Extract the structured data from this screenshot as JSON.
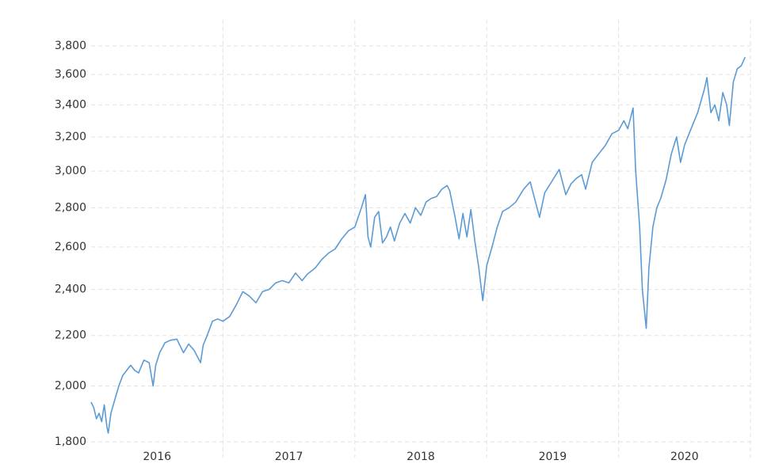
{
  "chart_data": {
    "type": "line",
    "log_scale_y": true,
    "grid": true,
    "xlim": [
      2016,
      2021
    ],
    "xticks": [
      {
        "value": 2016.5,
        "label": "2016"
      },
      {
        "value": 2017.5,
        "label": "2017"
      },
      {
        "value": 2018.5,
        "label": "2018"
      },
      {
        "value": 2019.5,
        "label": "2019"
      },
      {
        "value": 2020.5,
        "label": "2020"
      }
    ],
    "xgridlines": [
      2017,
      2018,
      2019,
      2020,
      2021
    ],
    "ylim": [
      1800,
      3800
    ],
    "yticks": [
      {
        "value": 1800,
        "label": "1,800"
      },
      {
        "value": 2000,
        "label": "2,000"
      },
      {
        "value": 2200,
        "label": "2,200"
      },
      {
        "value": 2400,
        "label": "2,400"
      },
      {
        "value": 2600,
        "label": "2,600"
      },
      {
        "value": 2800,
        "label": "2,800"
      },
      {
        "value": 3000,
        "label": "3,000"
      },
      {
        "value": 3200,
        "label": "3,200"
      },
      {
        "value": 3400,
        "label": "3,400"
      },
      {
        "value": 3600,
        "label": "3,600"
      },
      {
        "value": 3800,
        "label": "3,800"
      }
    ],
    "x": [
      2016.0,
      2016.02,
      2016.04,
      2016.06,
      2016.08,
      2016.1,
      2016.12,
      2016.13,
      2016.15,
      2016.18,
      2016.21,
      2016.24,
      2016.27,
      2016.3,
      2016.33,
      2016.36,
      2016.4,
      2016.44,
      2016.47,
      2016.49,
      2016.52,
      2016.56,
      2016.6,
      2016.65,
      2016.7,
      2016.74,
      2016.78,
      2016.83,
      2016.85,
      2016.88,
      2016.92,
      2016.96,
      2017.0,
      2017.05,
      2017.1,
      2017.15,
      2017.2,
      2017.25,
      2017.3,
      2017.35,
      2017.4,
      2017.45,
      2017.5,
      2017.55,
      2017.6,
      2017.64,
      2017.7,
      2017.75,
      2017.8,
      2017.85,
      2017.9,
      2017.95,
      2018.0,
      2018.05,
      2018.08,
      2018.1,
      2018.12,
      2018.15,
      2018.18,
      2018.21,
      2018.24,
      2018.27,
      2018.3,
      2018.34,
      2018.38,
      2018.42,
      2018.46,
      2018.5,
      2018.54,
      2018.58,
      2018.62,
      2018.66,
      2018.7,
      2018.72,
      2018.76,
      2018.79,
      2018.82,
      2018.85,
      2018.88,
      2018.91,
      2018.94,
      2018.97,
      2019.0,
      2019.04,
      2019.08,
      2019.12,
      2019.17,
      2019.22,
      2019.28,
      2019.33,
      2019.37,
      2019.4,
      2019.44,
      2019.5,
      2019.55,
      2019.6,
      2019.64,
      2019.68,
      2019.72,
      2019.75,
      2019.8,
      2019.85,
      2019.9,
      2019.95,
      2020.0,
      2020.04,
      2020.07,
      2020.11,
      2020.13,
      2020.16,
      2020.18,
      2020.21,
      2020.23,
      2020.26,
      2020.29,
      2020.32,
      2020.36,
      2020.4,
      2020.44,
      2020.47,
      2020.5,
      2020.55,
      2020.6,
      2020.65,
      2020.67,
      2020.7,
      2020.73,
      2020.76,
      2020.79,
      2020.82,
      2020.84,
      2020.87,
      2020.9,
      2020.93,
      2020.96
    ],
    "series": [
      {
        "color": "#5b9bd5",
        "values": [
          1940,
          1920,
          1880,
          1900,
          1870,
          1930,
          1850,
          1830,
          1900,
          1950,
          2000,
          2040,
          2060,
          2080,
          2060,
          2050,
          2100,
          2090,
          2000,
          2080,
          2130,
          2170,
          2180,
          2185,
          2130,
          2165,
          2140,
          2090,
          2160,
          2200,
          2260,
          2270,
          2260,
          2280,
          2330,
          2390,
          2370,
          2340,
          2390,
          2400,
          2430,
          2440,
          2430,
          2475,
          2440,
          2470,
          2500,
          2540,
          2570,
          2590,
          2640,
          2680,
          2700,
          2800,
          2870,
          2650,
          2600,
          2750,
          2780,
          2620,
          2650,
          2700,
          2630,
          2720,
          2770,
          2720,
          2800,
          2760,
          2830,
          2850,
          2860,
          2900,
          2920,
          2890,
          2750,
          2640,
          2770,
          2650,
          2790,
          2630,
          2500,
          2350,
          2510,
          2600,
          2700,
          2780,
          2800,
          2830,
          2900,
          2940,
          2830,
          2750,
          2880,
          2950,
          3010,
          2870,
          2930,
          2960,
          2980,
          2900,
          3050,
          3100,
          3150,
          3220,
          3240,
          3300,
          3250,
          3380,
          3000,
          2700,
          2400,
          2230,
          2500,
          2700,
          2800,
          2850,
          2950,
          3100,
          3200,
          3050,
          3150,
          3250,
          3350,
          3500,
          3580,
          3350,
          3400,
          3300,
          3480,
          3400,
          3270,
          3550,
          3640,
          3660,
          3720
        ]
      }
    ]
  }
}
